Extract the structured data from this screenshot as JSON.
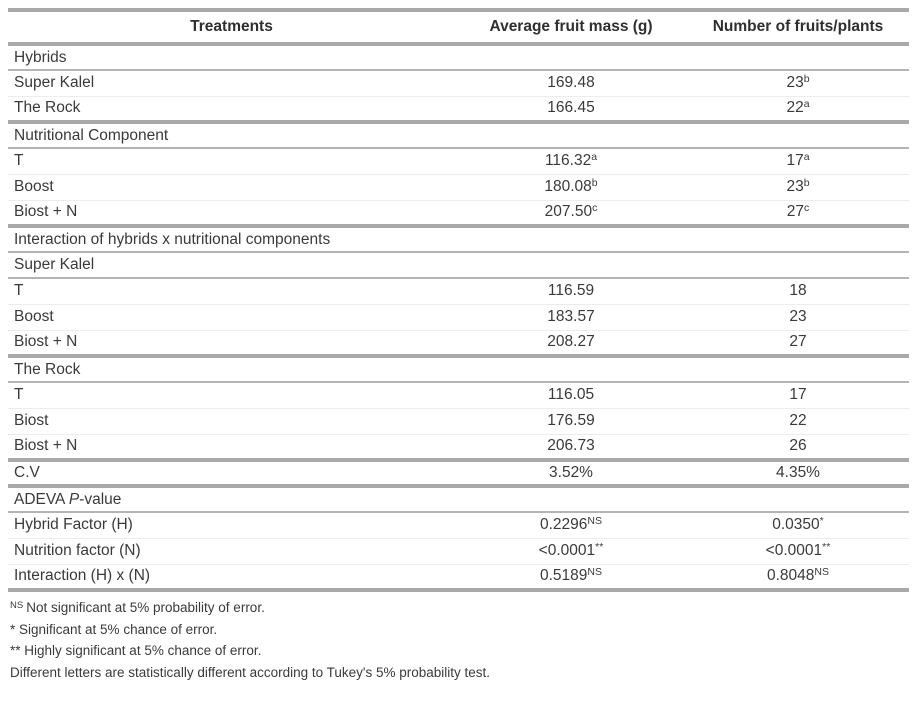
{
  "table": {
    "columns": [
      "Treatments",
      "Average fruit mass (g)",
      "Number of fruits/plants"
    ],
    "rows": [
      {
        "type": "section",
        "label": "Hybrids",
        "bottom": "medium"
      },
      {
        "type": "data",
        "label": "Super Kalel",
        "mass": "169.48",
        "fruits": "23",
        "fruits_sup": "b",
        "bottom": "faint"
      },
      {
        "type": "data",
        "label": "The Rock",
        "mass": "166.45",
        "fruits": "22",
        "fruits_sup": "a",
        "bottom": "thick"
      },
      {
        "type": "section",
        "label": "Nutritional Component",
        "bottom": "medium"
      },
      {
        "type": "data",
        "label": "T",
        "mass": "116.32",
        "mass_sup": "a",
        "fruits": "17",
        "fruits_sup": "a",
        "bottom": "faint"
      },
      {
        "type": "data",
        "label": "Boost",
        "mass": "180.08",
        "mass_sup": "b",
        "fruits": "23",
        "fruits_sup": "b",
        "bottom": "faint"
      },
      {
        "type": "data",
        "label": "Biost + N",
        "mass": "207.50",
        "mass_sup": "c",
        "fruits": "27",
        "fruits_sup": "c",
        "bottom": "thick"
      },
      {
        "type": "section",
        "label": "Interaction of hybrids x nutritional components",
        "bottom": "medium"
      },
      {
        "type": "section",
        "label": "Super Kalel",
        "bottom": "medium"
      },
      {
        "type": "data",
        "label": "T",
        "mass": "116.59",
        "fruits": "18",
        "bottom": "faint"
      },
      {
        "type": "data",
        "label": "Boost",
        "mass": "183.57",
        "fruits": "23",
        "bottom": "faint"
      },
      {
        "type": "data",
        "label": "Biost + N",
        "mass": "208.27",
        "fruits": "27",
        "bottom": "thick"
      },
      {
        "type": "section",
        "label": "The Rock",
        "bottom": "medium"
      },
      {
        "type": "data",
        "label": "T",
        "mass": "116.05",
        "fruits": "17",
        "bottom": "faint"
      },
      {
        "type": "data",
        "label": "Biost",
        "mass": "176.59",
        "fruits": "22",
        "bottom": "faint"
      },
      {
        "type": "data",
        "label": "Biost + N",
        "mass": "206.73",
        "fruits": "26",
        "bottom": "thick"
      },
      {
        "type": "data",
        "label": "C.V",
        "mass": "3.52%",
        "fruits": "4.35%",
        "bottom": "thick"
      },
      {
        "type": "section",
        "label_pre": "ADEVA ",
        "label_italic": "P",
        "label_post": "-value",
        "bottom": "medium"
      },
      {
        "type": "data",
        "label": "Hybrid Factor (H)",
        "mass": "0.2296",
        "mass_sup": "NS",
        "fruits": "0.0350",
        "fruits_sup": "*",
        "bottom": "faint"
      },
      {
        "type": "data",
        "label": "Nutrition factor (N)",
        "mass": "<0.0001",
        "mass_sup": "**",
        "fruits": "<0.0001",
        "fruits_sup": "**",
        "bottom": "faint"
      },
      {
        "type": "data",
        "label": "Interaction (H) x (N)",
        "mass": "0.5189",
        "mass_sup": "NS",
        "fruits": "0.8048",
        "fruits_sup": "NS",
        "bottom": "thick"
      }
    ]
  },
  "footnotes": [
    {
      "sup": "NS",
      "text": "Not significant at 5% probability of error."
    },
    {
      "sup": "",
      "text": "* Significant at 5% chance of error."
    },
    {
      "sup": "",
      "text": "** Highly significant at 5% chance of error."
    },
    {
      "sup": "",
      "text": "Different letters are statistically different according to Tukey's 5% probability test."
    }
  ],
  "colors": {
    "line_thick": "#a9a9a9",
    "line_medium": "#b4b4b4",
    "line_faint": "#ececec",
    "text": "#3a3a3a",
    "header_text": "#2f2f2f",
    "background": "#ffffff"
  }
}
